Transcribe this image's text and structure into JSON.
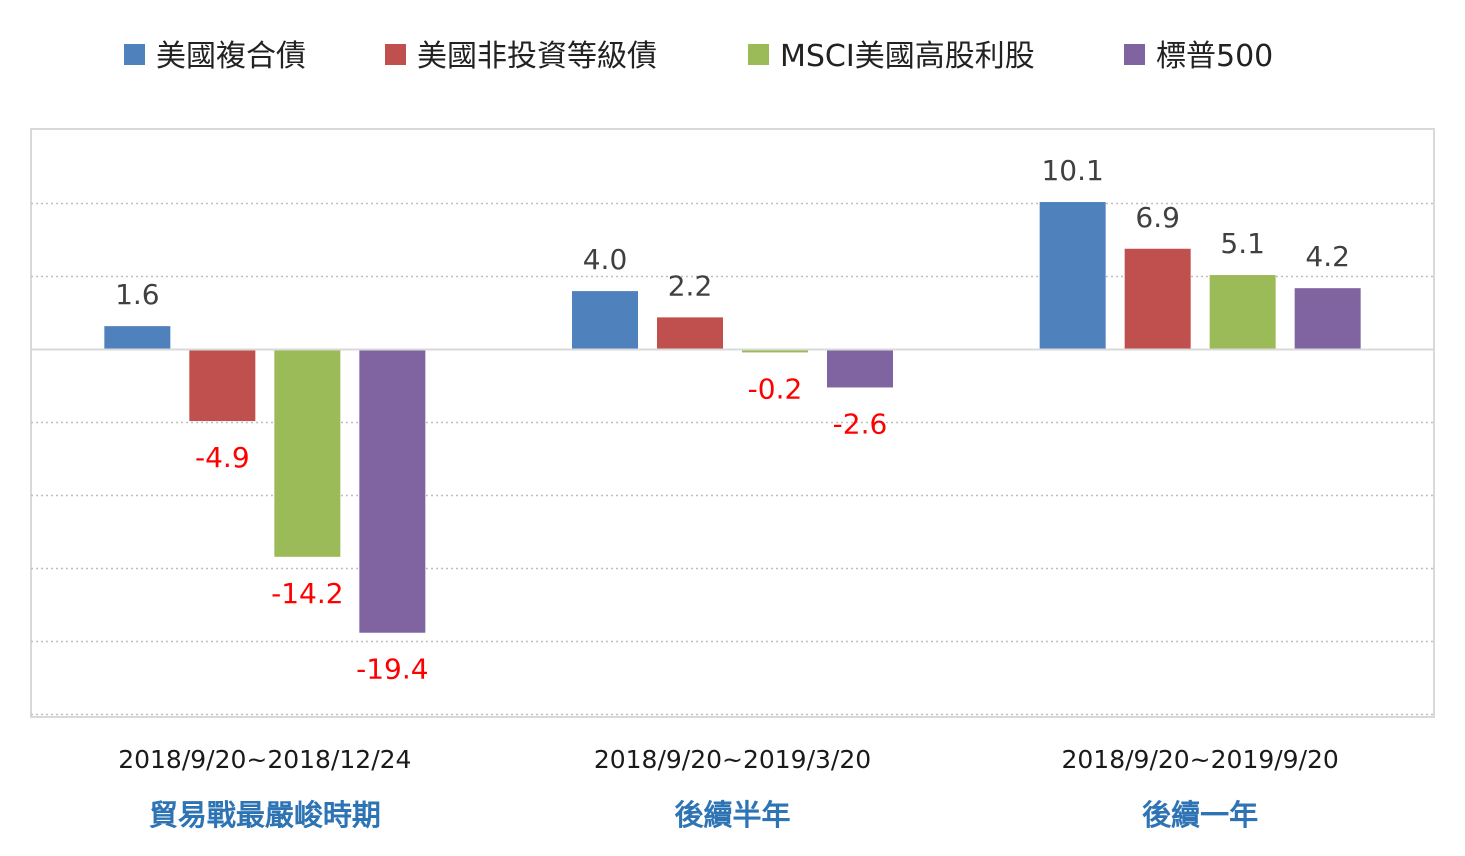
{
  "chart_data": {
    "type": "bar",
    "categories": [
      {
        "date_range": "2018/9/20~2018/12/24",
        "label": "貿易戰最嚴峻時期"
      },
      {
        "date_range": "2018/9/20~2019/3/20",
        "label": "後續半年"
      },
      {
        "date_range": "2018/9/20~2019/9/20",
        "label": "後續一年"
      }
    ],
    "series": [
      {
        "name": "美國複合債",
        "color": "#4f81bd",
        "values": [
          1.6,
          4.0,
          10.1
        ],
        "labels": [
          "1.6",
          "4.0",
          "10.1"
        ]
      },
      {
        "name": "美國非投資等級債",
        "color": "#c0504d",
        "values": [
          -4.9,
          2.2,
          6.9
        ],
        "labels": [
          "-4.9",
          "2.2",
          "6.9"
        ]
      },
      {
        "name": "MSCI美國高股利股",
        "color": "#9bbb59",
        "values": [
          -14.2,
          -0.2,
          5.1
        ],
        "labels": [
          "-14.2",
          "-0.2",
          "5.1"
        ]
      },
      {
        "name": "標普500",
        "color": "#8064a2",
        "values": [
          -19.4,
          -2.6,
          4.2
        ],
        "labels": [
          "-19.4",
          "-2.6",
          "4.2"
        ]
      }
    ],
    "ylim": [
      -25,
      15
    ],
    "grid": true,
    "legend_position": "top",
    "positive_label_color": "#404040",
    "negative_label_color": "#ff0000",
    "category_label_color": "#2e74b5"
  }
}
